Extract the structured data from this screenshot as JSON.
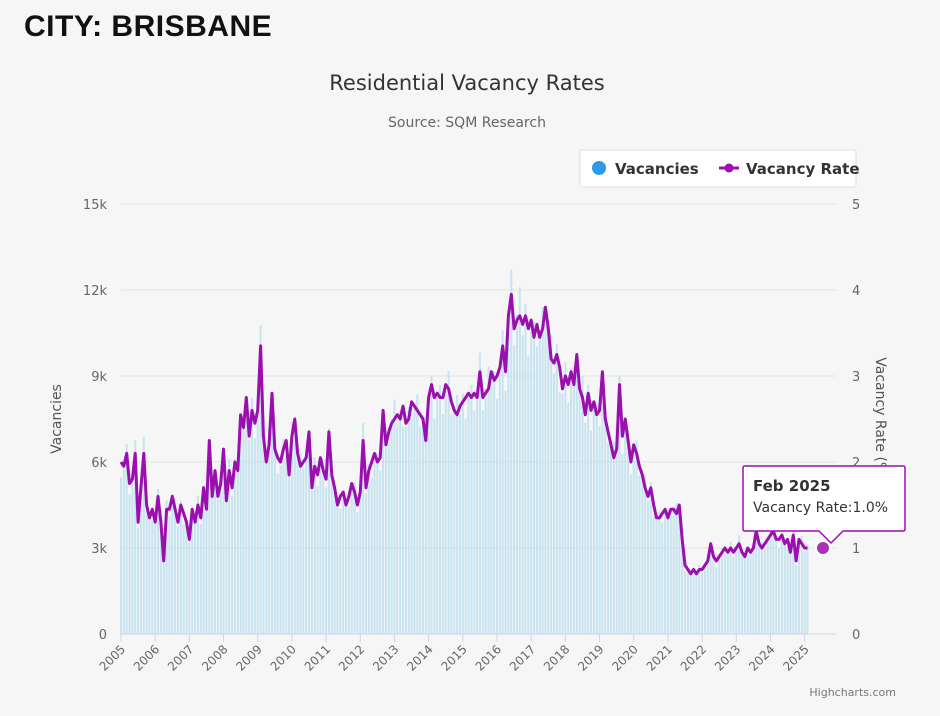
{
  "page": {
    "city_title": "CITY: BRISBANE",
    "credits": "Highcharts.com"
  },
  "chart_data": {
    "type": "bar+line",
    "title": "Residential Vacancy Rates",
    "subtitle": "Source: SQM Research",
    "y_left": {
      "label": "Vacancies",
      "range": [
        0,
        15000
      ],
      "ticks": [
        "0",
        "3k",
        "6k",
        "9k",
        "12k",
        "15k"
      ]
    },
    "y_right": {
      "label": "Vacancy Rate (%)",
      "range": [
        0,
        5
      ],
      "ticks": [
        "0",
        "1",
        "2",
        "3",
        "4",
        "5"
      ]
    },
    "x": {
      "range": [
        "2005-01",
        "2025-12"
      ],
      "ticks": [
        "2005",
        "2006",
        "2007",
        "2008",
        "2009",
        "2010",
        "2011",
        "2012",
        "2013",
        "2014",
        "2015",
        "2016",
        "2017",
        "2018",
        "2019",
        "2020",
        "2021",
        "2022",
        "2023",
        "2024",
        "2025"
      ]
    },
    "legend": {
      "placement": "top-right",
      "items": [
        {
          "name": "Vacancies",
          "color": "#2b9be8",
          "marker": "circle"
        },
        {
          "name": "Vacancy Rate",
          "color": "#9b0fae",
          "marker": "line"
        }
      ]
    },
    "colors": {
      "bars": "#bfe0ef",
      "line": "#9b0fae",
      "tooltip_border": "#9b0fae"
    },
    "series": [
      {
        "name": "Vacancy Rate",
        "type": "line",
        "unit": "%",
        "points": [
          [
            "2005-01",
            2.0
          ],
          [
            "2005-02",
            1.95
          ],
          [
            "2005-03",
            2.1
          ],
          [
            "2005-04",
            1.75
          ],
          [
            "2005-05",
            1.8
          ],
          [
            "2005-06",
            2.1
          ],
          [
            "2005-07",
            1.3
          ],
          [
            "2005-08",
            1.7
          ],
          [
            "2005-09",
            2.1
          ],
          [
            "2005-10",
            1.5
          ],
          [
            "2005-11",
            1.35
          ],
          [
            "2005-12",
            1.45
          ],
          [
            "2006-01",
            1.3
          ],
          [
            "2006-02",
            1.6
          ],
          [
            "2006-03",
            1.3
          ],
          [
            "2006-04",
            0.85
          ],
          [
            "2006-05",
            1.45
          ],
          [
            "2006-06",
            1.45
          ],
          [
            "2006-07",
            1.6
          ],
          [
            "2006-08",
            1.45
          ],
          [
            "2006-09",
            1.3
          ],
          [
            "2006-10",
            1.5
          ],
          [
            "2006-11",
            1.4
          ],
          [
            "2006-12",
            1.3
          ],
          [
            "2007-01",
            1.1
          ],
          [
            "2007-02",
            1.45
          ],
          [
            "2007-03",
            1.3
          ],
          [
            "2007-04",
            1.5
          ],
          [
            "2007-05",
            1.35
          ],
          [
            "2007-06",
            1.7
          ],
          [
            "2007-07",
            1.45
          ],
          [
            "2007-08",
            2.25
          ],
          [
            "2007-09",
            1.6
          ],
          [
            "2007-10",
            1.9
          ],
          [
            "2007-11",
            1.6
          ],
          [
            "2007-12",
            1.75
          ],
          [
            "2008-01",
            2.15
          ],
          [
            "2008-02",
            1.55
          ],
          [
            "2008-03",
            1.9
          ],
          [
            "2008-04",
            1.7
          ],
          [
            "2008-05",
            2.0
          ],
          [
            "2008-06",
            1.9
          ],
          [
            "2008-07",
            2.55
          ],
          [
            "2008-08",
            2.4
          ],
          [
            "2008-09",
            2.75
          ],
          [
            "2008-10",
            2.3
          ],
          [
            "2008-11",
            2.6
          ],
          [
            "2008-12",
            2.45
          ],
          [
            "2009-01",
            2.6
          ],
          [
            "2009-02",
            3.35
          ],
          [
            "2009-03",
            2.3
          ],
          [
            "2009-04",
            2.0
          ],
          [
            "2009-05",
            2.2
          ],
          [
            "2009-06",
            2.8
          ],
          [
            "2009-07",
            2.15
          ],
          [
            "2009-08",
            2.05
          ],
          [
            "2009-09",
            2.0
          ],
          [
            "2009-10",
            2.15
          ],
          [
            "2009-11",
            2.25
          ],
          [
            "2009-12",
            1.85
          ],
          [
            "2010-01",
            2.3
          ],
          [
            "2010-02",
            2.5
          ],
          [
            "2010-03",
            2.1
          ],
          [
            "2010-04",
            1.95
          ],
          [
            "2010-05",
            2.0
          ],
          [
            "2010-06",
            2.05
          ],
          [
            "2010-07",
            2.35
          ],
          [
            "2010-08",
            1.7
          ],
          [
            "2010-09",
            1.95
          ],
          [
            "2010-10",
            1.85
          ],
          [
            "2010-11",
            2.05
          ],
          [
            "2010-12",
            1.9
          ],
          [
            "2011-01",
            1.8
          ],
          [
            "2011-02",
            2.35
          ],
          [
            "2011-03",
            1.85
          ],
          [
            "2011-04",
            1.7
          ],
          [
            "2011-05",
            1.5
          ],
          [
            "2011-06",
            1.6
          ],
          [
            "2011-07",
            1.65
          ],
          [
            "2011-08",
            1.5
          ],
          [
            "2011-09",
            1.6
          ],
          [
            "2011-10",
            1.75
          ],
          [
            "2011-11",
            1.65
          ],
          [
            "2011-12",
            1.5
          ],
          [
            "2012-01",
            1.65
          ],
          [
            "2012-02",
            2.25
          ],
          [
            "2012-03",
            1.7
          ],
          [
            "2012-04",
            1.9
          ],
          [
            "2012-05",
            2.0
          ],
          [
            "2012-06",
            2.1
          ],
          [
            "2012-07",
            2.0
          ],
          [
            "2012-08",
            2.05
          ],
          [
            "2012-09",
            2.6
          ],
          [
            "2012-10",
            2.2
          ],
          [
            "2012-11",
            2.35
          ],
          [
            "2012-12",
            2.45
          ],
          [
            "2013-01",
            2.5
          ],
          [
            "2013-02",
            2.55
          ],
          [
            "2013-03",
            2.5
          ],
          [
            "2013-04",
            2.65
          ],
          [
            "2013-05",
            2.45
          ],
          [
            "2013-06",
            2.5
          ],
          [
            "2013-07",
            2.7
          ],
          [
            "2013-08",
            2.65
          ],
          [
            "2013-09",
            2.6
          ],
          [
            "2013-10",
            2.55
          ],
          [
            "2013-11",
            2.5
          ],
          [
            "2013-12",
            2.25
          ],
          [
            "2014-01",
            2.75
          ],
          [
            "2014-02",
            2.9
          ],
          [
            "2014-03",
            2.75
          ],
          [
            "2014-04",
            2.8
          ],
          [
            "2014-05",
            2.75
          ],
          [
            "2014-06",
            2.75
          ],
          [
            "2014-07",
            2.9
          ],
          [
            "2014-08",
            2.85
          ],
          [
            "2014-09",
            2.7
          ],
          [
            "2014-10",
            2.6
          ],
          [
            "2014-11",
            2.55
          ],
          [
            "2014-12",
            2.65
          ],
          [
            "2015-01",
            2.7
          ],
          [
            "2015-02",
            2.75
          ],
          [
            "2015-03",
            2.8
          ],
          [
            "2015-04",
            2.75
          ],
          [
            "2015-05",
            2.8
          ],
          [
            "2015-06",
            2.75
          ],
          [
            "2015-07",
            3.05
          ],
          [
            "2015-08",
            2.75
          ],
          [
            "2015-09",
            2.8
          ],
          [
            "2015-10",
            2.85
          ],
          [
            "2015-11",
            3.05
          ],
          [
            "2015-12",
            2.95
          ],
          [
            "2016-01",
            3.0
          ],
          [
            "2016-02",
            3.1
          ],
          [
            "2016-03",
            3.35
          ],
          [
            "2016-04",
            3.05
          ],
          [
            "2016-05",
            3.7
          ],
          [
            "2016-06",
            3.95
          ],
          [
            "2016-07",
            3.55
          ],
          [
            "2016-08",
            3.65
          ],
          [
            "2016-09",
            3.7
          ],
          [
            "2016-10",
            3.6
          ],
          [
            "2016-11",
            3.7
          ],
          [
            "2016-12",
            3.55
          ],
          [
            "2017-01",
            3.65
          ],
          [
            "2017-02",
            3.45
          ],
          [
            "2017-03",
            3.6
          ],
          [
            "2017-04",
            3.45
          ],
          [
            "2017-05",
            3.55
          ],
          [
            "2017-06",
            3.8
          ],
          [
            "2017-07",
            3.55
          ],
          [
            "2017-08",
            3.2
          ],
          [
            "2017-09",
            3.15
          ],
          [
            "2017-10",
            3.25
          ],
          [
            "2017-11",
            3.1
          ],
          [
            "2017-12",
            2.85
          ],
          [
            "2018-01",
            3.0
          ],
          [
            "2018-02",
            2.9
          ],
          [
            "2018-03",
            3.05
          ],
          [
            "2018-04",
            2.9
          ],
          [
            "2018-05",
            3.25
          ],
          [
            "2018-06",
            2.85
          ],
          [
            "2018-07",
            2.75
          ],
          [
            "2018-08",
            2.55
          ],
          [
            "2018-09",
            2.8
          ],
          [
            "2018-10",
            2.6
          ],
          [
            "2018-11",
            2.7
          ],
          [
            "2018-12",
            2.55
          ],
          [
            "2019-01",
            2.6
          ],
          [
            "2019-02",
            3.05
          ],
          [
            "2019-03",
            2.5
          ],
          [
            "2019-04",
            2.35
          ],
          [
            "2019-05",
            2.2
          ],
          [
            "2019-06",
            2.05
          ],
          [
            "2019-07",
            2.15
          ],
          [
            "2019-08",
            2.9
          ],
          [
            "2019-09",
            2.3
          ],
          [
            "2019-10",
            2.5
          ],
          [
            "2019-11",
            2.25
          ],
          [
            "2019-12",
            2.0
          ],
          [
            "2020-01",
            2.2
          ],
          [
            "2020-02",
            2.1
          ],
          [
            "2020-03",
            1.95
          ],
          [
            "2020-04",
            1.85
          ],
          [
            "2020-05",
            1.7
          ],
          [
            "2020-06",
            1.6
          ],
          [
            "2020-07",
            1.7
          ],
          [
            "2020-08",
            1.5
          ],
          [
            "2020-09",
            1.35
          ],
          [
            "2020-10",
            1.35
          ],
          [
            "2020-11",
            1.4
          ],
          [
            "2020-12",
            1.45
          ],
          [
            "2021-01",
            1.35
          ],
          [
            "2021-02",
            1.45
          ],
          [
            "2021-03",
            1.45
          ],
          [
            "2021-04",
            1.4
          ],
          [
            "2021-05",
            1.5
          ],
          [
            "2021-06",
            1.1
          ],
          [
            "2021-07",
            0.8
          ],
          [
            "2021-08",
            0.75
          ],
          [
            "2021-09",
            0.7
          ],
          [
            "2021-10",
            0.75
          ],
          [
            "2021-11",
            0.7
          ],
          [
            "2021-12",
            0.75
          ],
          [
            "2022-01",
            0.75
          ],
          [
            "2022-02",
            0.8
          ],
          [
            "2022-03",
            0.85
          ],
          [
            "2022-04",
            1.05
          ],
          [
            "2022-05",
            0.9
          ],
          [
            "2022-06",
            0.85
          ],
          [
            "2022-07",
            0.9
          ],
          [
            "2022-08",
            0.95
          ],
          [
            "2022-09",
            1.0
          ],
          [
            "2022-10",
            0.95
          ],
          [
            "2022-11",
            1.0
          ],
          [
            "2022-12",
            0.95
          ],
          [
            "2023-01",
            1.0
          ],
          [
            "2023-02",
            1.05
          ],
          [
            "2023-03",
            0.95
          ],
          [
            "2023-04",
            0.9
          ],
          [
            "2023-05",
            1.0
          ],
          [
            "2023-06",
            0.95
          ],
          [
            "2023-07",
            1.0
          ],
          [
            "2023-08",
            1.2
          ],
          [
            "2023-09",
            1.05
          ],
          [
            "2023-10",
            1.0
          ],
          [
            "2023-11",
            1.05
          ],
          [
            "2023-12",
            1.1
          ],
          [
            "2024-01",
            1.15
          ],
          [
            "2024-02",
            1.2
          ],
          [
            "2024-03",
            1.1
          ],
          [
            "2024-04",
            1.1
          ],
          [
            "2024-05",
            1.15
          ],
          [
            "2024-06",
            1.05
          ],
          [
            "2024-07",
            1.1
          ],
          [
            "2024-08",
            0.95
          ],
          [
            "2024-09",
            1.15
          ],
          [
            "2024-10",
            0.85
          ],
          [
            "2024-11",
            1.1
          ],
          [
            "2024-12",
            1.05
          ],
          [
            "2025-01",
            1.0
          ],
          [
            "2025-02",
            1.0
          ]
        ]
      },
      {
        "name": "Vacancies",
        "type": "column",
        "unit": "count",
        "note": "monthly values approx = vacancy rate x 3000",
        "values_ref": "Vacancy Rate"
      }
    ],
    "tooltip": {
      "date": "Feb 2025",
      "label": "Vacancy Rate:",
      "value": "1.0%"
    }
  }
}
